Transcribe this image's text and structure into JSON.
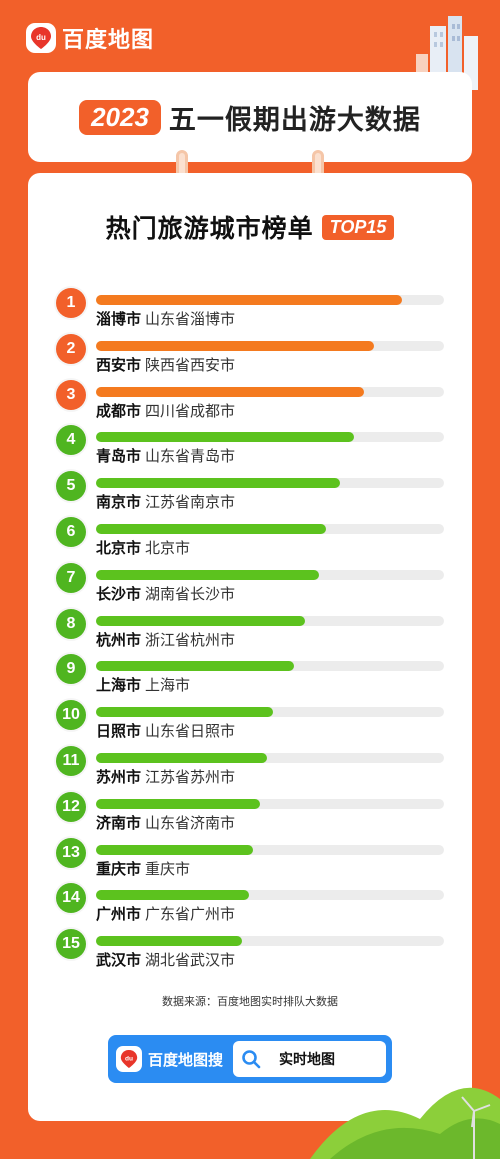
{
  "brand": {
    "name": "百度地图",
    "logo_text": "du"
  },
  "header": {
    "year": "2023",
    "title": "五一假期出游大数据"
  },
  "list": {
    "title": "热门旅游城市榜单",
    "badge": "TOP15"
  },
  "colors": {
    "brand_orange": "#f2602a",
    "top_bar": "#f47a1f",
    "top_circle": "#f2602a",
    "green_bar": "#5cc21e",
    "green_circle": "#4fb520",
    "track": "#ececec",
    "search_blue": "#2b8cf2"
  },
  "chart_data": {
    "type": "bar",
    "orientation": "horizontal",
    "title": "热门旅游城市榜单",
    "badge": "TOP15",
    "xlim": [
      0,
      100
    ],
    "categories": [
      "淄博市",
      "西安市",
      "成都市",
      "青岛市",
      "南京市",
      "北京市",
      "长沙市",
      "杭州市",
      "上海市",
      "日照市",
      "苏州市",
      "济南市",
      "重庆市",
      "广州市",
      "武汉市"
    ],
    "ranks": [
      "1",
      "2",
      "3",
      "4",
      "5",
      "6",
      "7",
      "8",
      "9",
      "10",
      "11",
      "12",
      "13",
      "14",
      "15"
    ],
    "regions": [
      "山东省淄博市",
      "陕西省西安市",
      "四川省成都市",
      "山东省青岛市",
      "江苏省南京市",
      "北京市",
      "湖南省长沙市",
      "浙江省杭州市",
      "上海市",
      "山东省日照市",
      "江苏省苏州市",
      "山东省济南市",
      "重庆市",
      "广东省广州市",
      "湖北省武汉市"
    ],
    "values": [
      88,
      80,
      77,
      74,
      70,
      66,
      64,
      60,
      57,
      51,
      49,
      47,
      45,
      44,
      42
    ]
  },
  "footer": {
    "source": "数据来源：百度地图实时排队大数据",
    "search_brand": "百度地图搜",
    "search_text": "实时地图",
    "search_icon": "search-icon"
  }
}
